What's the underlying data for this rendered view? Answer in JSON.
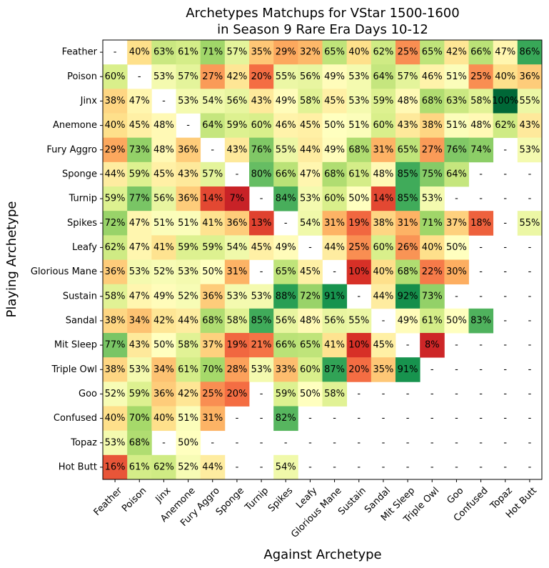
{
  "chart_data": {
    "type": "heatmap",
    "title_lines": [
      "Archetypes Matchups for VStar 1500-1600",
      "in Season 9 Rare Era Days 10-12"
    ],
    "xlabel": "Against Archetype",
    "ylabel": "Playing Archetype",
    "color_scale": "red-yellow-green (RdYlGn), 0% red to 100% green",
    "rows": [
      "Feather",
      "Poison",
      "Jinx",
      "Anemone",
      "Fury Aggro",
      "Sponge",
      "Turnip",
      "Spikes",
      "Leafy",
      "Glorious Mane",
      "Sustain",
      "Sandal",
      "Mit Sleep",
      "Triple Owl",
      "Goo",
      "Confused",
      "Topaz",
      "Hot Butt"
    ],
    "columns": [
      "Feather",
      "Poison",
      "Jinx",
      "Anemone",
      "Fury Aggro",
      "Sponge",
      "Turnip",
      "Spikes",
      "Leafy",
      "Glorious Mane",
      "Sustain",
      "Sandal",
      "Mit Sleep",
      "Triple Owl",
      "Goo",
      "Confused",
      "Topaz",
      "Hot Butt"
    ],
    "values": [
      [
        null,
        40,
        63,
        61,
        71,
        57,
        35,
        29,
        32,
        65,
        40,
        62,
        25,
        65,
        42,
        66,
        47,
        86
      ],
      [
        60,
        null,
        53,
        57,
        27,
        42,
        20,
        55,
        56,
        49,
        53,
        64,
        57,
        46,
        51,
        25,
        40,
        36
      ],
      [
        38,
        47,
        null,
        53,
        54,
        56,
        43,
        49,
        58,
        45,
        53,
        59,
        48,
        68,
        63,
        58,
        100,
        55
      ],
      [
        40,
        45,
        48,
        null,
        64,
        59,
        60,
        46,
        45,
        50,
        51,
        60,
        43,
        38,
        51,
        48,
        62,
        43
      ],
      [
        29,
        73,
        48,
        36,
        null,
        43,
        76,
        55,
        44,
        49,
        68,
        31,
        65,
        27,
        76,
        74,
        null,
        53
      ],
      [
        44,
        59,
        45,
        43,
        57,
        null,
        80,
        66,
        47,
        68,
        61,
        48,
        85,
        75,
        64,
        null,
        null,
        null
      ],
      [
        59,
        77,
        56,
        36,
        14,
        7,
        null,
        84,
        53,
        60,
        50,
        14,
        85,
        53,
        null,
        null,
        null,
        null
      ],
      [
        72,
        47,
        51,
        51,
        41,
        36,
        13,
        null,
        54,
        31,
        19,
        38,
        31,
        71,
        37,
        18,
        null,
        55
      ],
      [
        62,
        47,
        41,
        59,
        59,
        54,
        45,
        49,
        null,
        44,
        25,
        60,
        26,
        40,
        50,
        null,
        null,
        null
      ],
      [
        36,
        53,
        52,
        53,
        50,
        31,
        null,
        65,
        45,
        null,
        10,
        40,
        68,
        22,
        30,
        null,
        null,
        null
      ],
      [
        58,
        47,
        49,
        52,
        36,
        53,
        53,
        88,
        72,
        91,
        null,
        44,
        92,
        73,
        null,
        null,
        null,
        null
      ],
      [
        38,
        34,
        42,
        44,
        68,
        58,
        85,
        56,
        48,
        56,
        55,
        null,
        49,
        61,
        50,
        83,
        null,
        null
      ],
      [
        77,
        43,
        50,
        58,
        37,
        19,
        21,
        66,
        65,
        41,
        10,
        45,
        null,
        8,
        null,
        null,
        null,
        null
      ],
      [
        38,
        53,
        34,
        61,
        70,
        28,
        53,
        33,
        60,
        87,
        20,
        35,
        91,
        null,
        null,
        null,
        null,
        null
      ],
      [
        52,
        59,
        36,
        42,
        25,
        20,
        null,
        59,
        50,
        58,
        null,
        null,
        null,
        null,
        null,
        null,
        null,
        null
      ],
      [
        40,
        70,
        40,
        51,
        31,
        null,
        null,
        82,
        null,
        null,
        null,
        null,
        null,
        null,
        null,
        null,
        null,
        null
      ],
      [
        53,
        68,
        null,
        50,
        null,
        null,
        null,
        null,
        null,
        null,
        null,
        null,
        null,
        null,
        null,
        null,
        null,
        null
      ],
      [
        16,
        61,
        62,
        52,
        44,
        null,
        null,
        54,
        null,
        null,
        null,
        null,
        null,
        null,
        null,
        null,
        null,
        null
      ]
    ],
    "missing_label": "-"
  }
}
